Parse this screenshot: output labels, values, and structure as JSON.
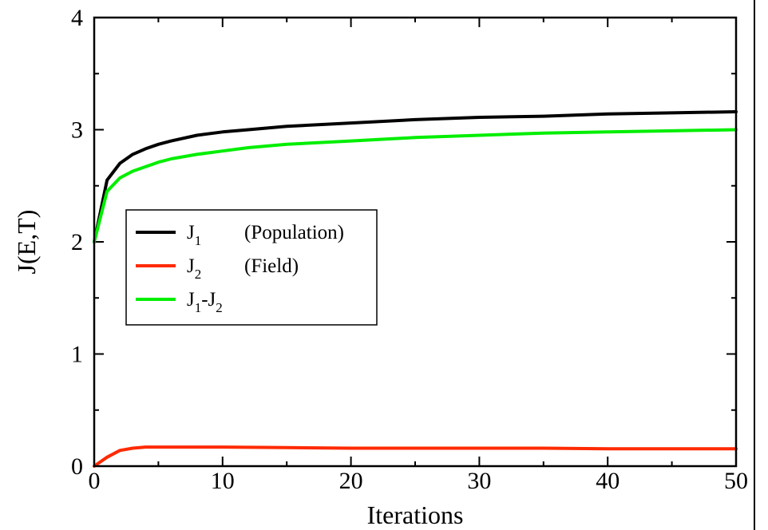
{
  "chart_data": {
    "type": "line",
    "xlabel": "Iterations",
    "ylabel": "J(E,T)",
    "xlim": [
      0,
      50
    ],
    "ylim": [
      0,
      4
    ],
    "x_ticks": [
      "0",
      "10",
      "20",
      "30",
      "40",
      "50"
    ],
    "y_ticks": [
      "0",
      "1",
      "2",
      "3",
      "4"
    ],
    "x_tick_values": [
      0,
      10,
      20,
      30,
      40,
      50
    ],
    "y_tick_values": [
      0,
      1,
      2,
      3,
      4
    ],
    "grid": false,
    "legend_position": "center-left",
    "series": [
      {
        "color": "#000000",
        "legend": {
          "main": "J",
          "sub1": "1",
          "text": "(Population)"
        },
        "x": [
          0,
          1,
          2,
          3,
          4,
          5,
          6,
          8,
          10,
          12,
          15,
          20,
          25,
          30,
          35,
          40,
          45,
          50
        ],
        "y": [
          2.0,
          2.55,
          2.7,
          2.78,
          2.83,
          2.87,
          2.9,
          2.95,
          2.98,
          3.0,
          3.03,
          3.06,
          3.09,
          3.11,
          3.12,
          3.14,
          3.15,
          3.16
        ]
      },
      {
        "color": "#ff2a00",
        "legend": {
          "main": "J",
          "sub1": "2",
          "text": "(Field)"
        },
        "x": [
          0,
          1,
          2,
          3,
          4,
          5,
          6,
          8,
          10,
          15,
          20,
          25,
          30,
          35,
          40,
          45,
          50
        ],
        "y": [
          0.0,
          0.08,
          0.14,
          0.16,
          0.17,
          0.17,
          0.17,
          0.17,
          0.17,
          0.165,
          0.16,
          0.16,
          0.16,
          0.16,
          0.155,
          0.155,
          0.155
        ]
      },
      {
        "color": "#00ee00",
        "legend": {
          "main": "J",
          "sub1": "1",
          "dash": "-J",
          "sub2": "2"
        },
        "x": [
          0,
          1,
          2,
          3,
          4,
          5,
          6,
          8,
          10,
          12,
          15,
          20,
          25,
          30,
          35,
          40,
          45,
          50
        ],
        "y": [
          2.0,
          2.45,
          2.57,
          2.63,
          2.67,
          2.71,
          2.74,
          2.78,
          2.81,
          2.84,
          2.87,
          2.9,
          2.93,
          2.95,
          2.97,
          2.98,
          2.99,
          3.0
        ]
      }
    ]
  }
}
